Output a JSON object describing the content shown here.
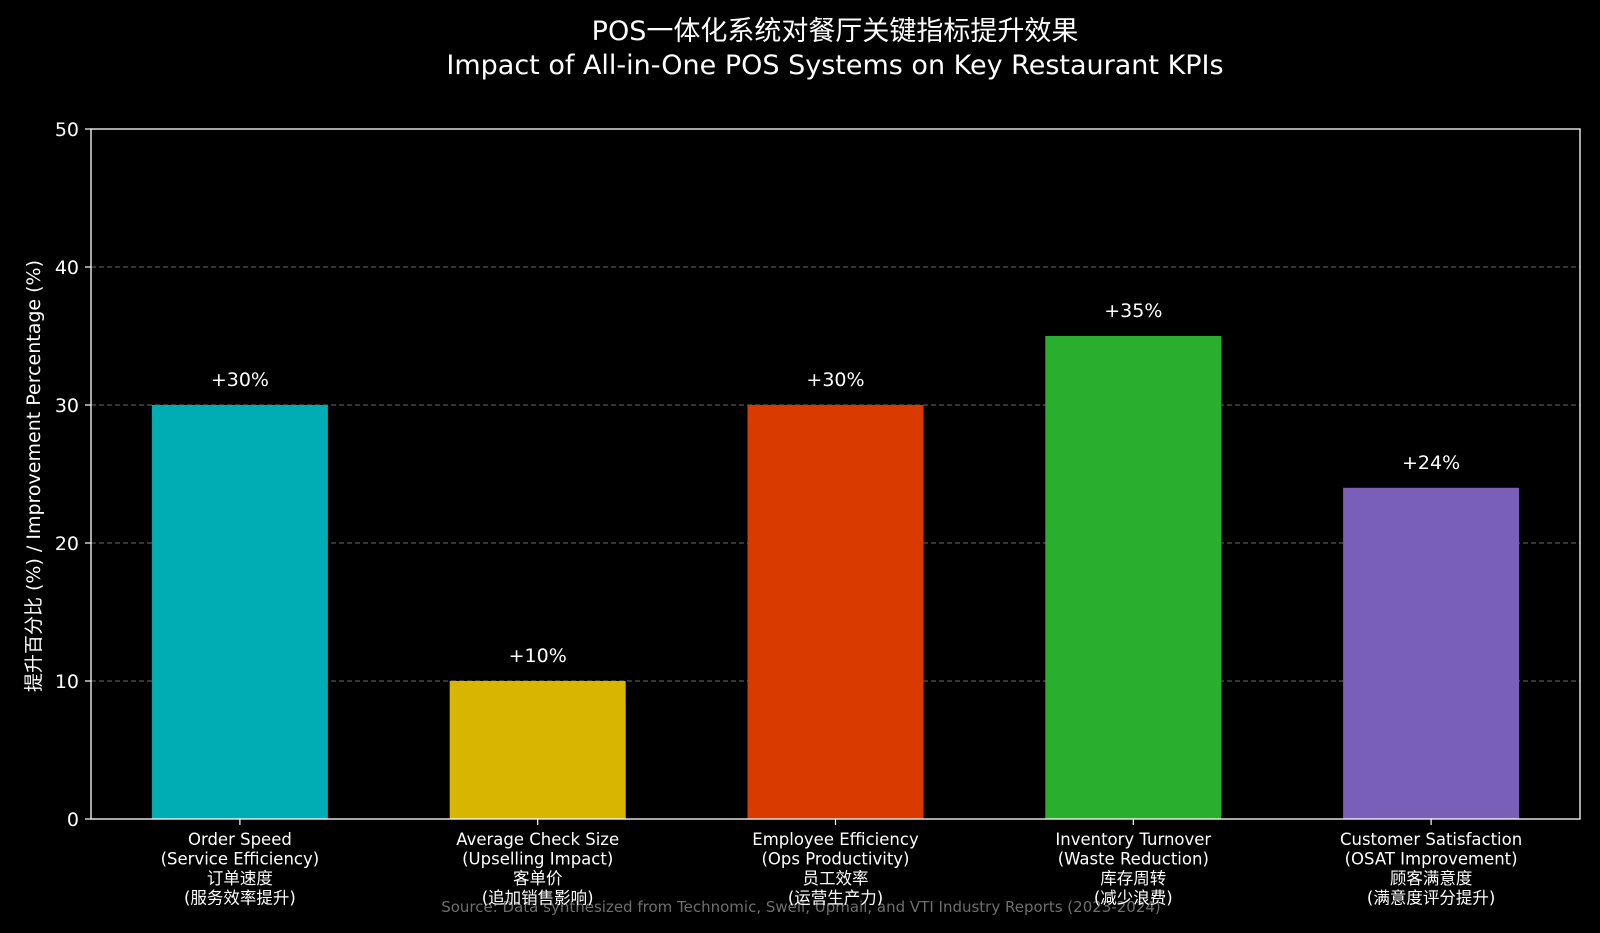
{
  "chart_data": {
    "type": "bar",
    "title": "POS一体化系统对餐厅关键指标提升效果",
    "subtitle": "Impact of All-in-One POS Systems on Key Restaurant KPIs",
    "ylabel": "提升百分比 (%) / Improvement Percentage (%)",
    "xlabel": "",
    "ylim": [
      0,
      50
    ],
    "yticks": [
      0,
      10,
      20,
      30,
      40,
      50
    ],
    "grid": "horizontal dashed",
    "categories": [
      [
        "Order Speed",
        "(Service Efficiency)",
        "订单速度",
        "(服务效率提升)"
      ],
      [
        "Average Check Size",
        "(Upselling Impact)",
        "客单价",
        "(追加销售影响)"
      ],
      [
        "Employee Efficiency",
        "(Ops Productivity)",
        "员工效率",
        "(运营生产力)"
      ],
      [
        "Inventory Turnover",
        "(Waste Reduction)",
        "库存周转",
        "(减少浪费)"
      ],
      [
        "Customer Satisfaction",
        "(OSAT Improvement)",
        "顾客满意度",
        "(满意度评分提升)"
      ]
    ],
    "values": [
      30,
      10,
      30,
      35,
      24
    ],
    "value_labels": [
      "+30%",
      "+10%",
      "+30%",
      "+35%",
      "+24%"
    ],
    "colors": [
      "#00adb5",
      "#d8b500",
      "#d83a00",
      "#2aae2d",
      "#7a5fb9"
    ],
    "source": "Source: Data synthesized from Technomic, Swell, Upmail, and VTI Industry Reports (2023-2024)"
  }
}
